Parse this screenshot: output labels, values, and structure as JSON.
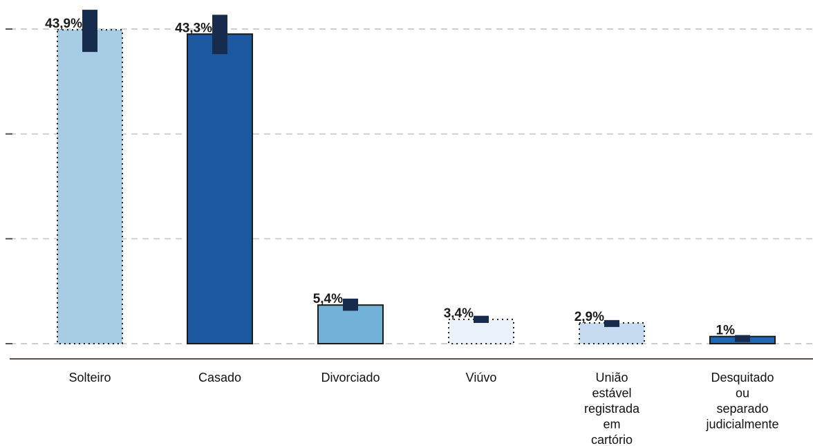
{
  "chart_data": {
    "type": "bar",
    "title": "",
    "xlabel": "",
    "ylabel": "",
    "ylim": [
      0,
      45
    ],
    "grid": true,
    "categories": [
      [
        "Solteiro"
      ],
      [
        "Casado"
      ],
      [
        "Divorciado"
      ],
      [
        "Viúvo"
      ],
      [
        "União",
        "estável",
        "registrada",
        "em",
        "cartório"
      ],
      [
        "Desquitado",
        "ou",
        "separado",
        "judicialmente"
      ]
    ],
    "values": [
      43.9,
      43.3,
      5.4,
      3.4,
      2.9,
      1
    ],
    "value_labels": [
      "43,9%",
      "43,3%",
      "5,4%",
      "3,4%",
      "2,9%",
      "1%"
    ],
    "error_ranges": [
      [
        40.8,
        46.7
      ],
      [
        40.5,
        46.0
      ],
      [
        4.6,
        6.3
      ],
      [
        2.9,
        3.9
      ],
      [
        2.5,
        3.3
      ],
      [
        0.8,
        1.2
      ]
    ],
    "bar_colors": [
      "#a6cde4",
      "#1b58a0",
      "#72b2d9",
      "#eaf3fc",
      "#c6dbef",
      "#1f66b4"
    ],
    "bar_styles": [
      "dotted",
      "solid",
      "solid",
      "dotted",
      "dotted",
      "solid"
    ],
    "error_color": "#172b4d"
  }
}
